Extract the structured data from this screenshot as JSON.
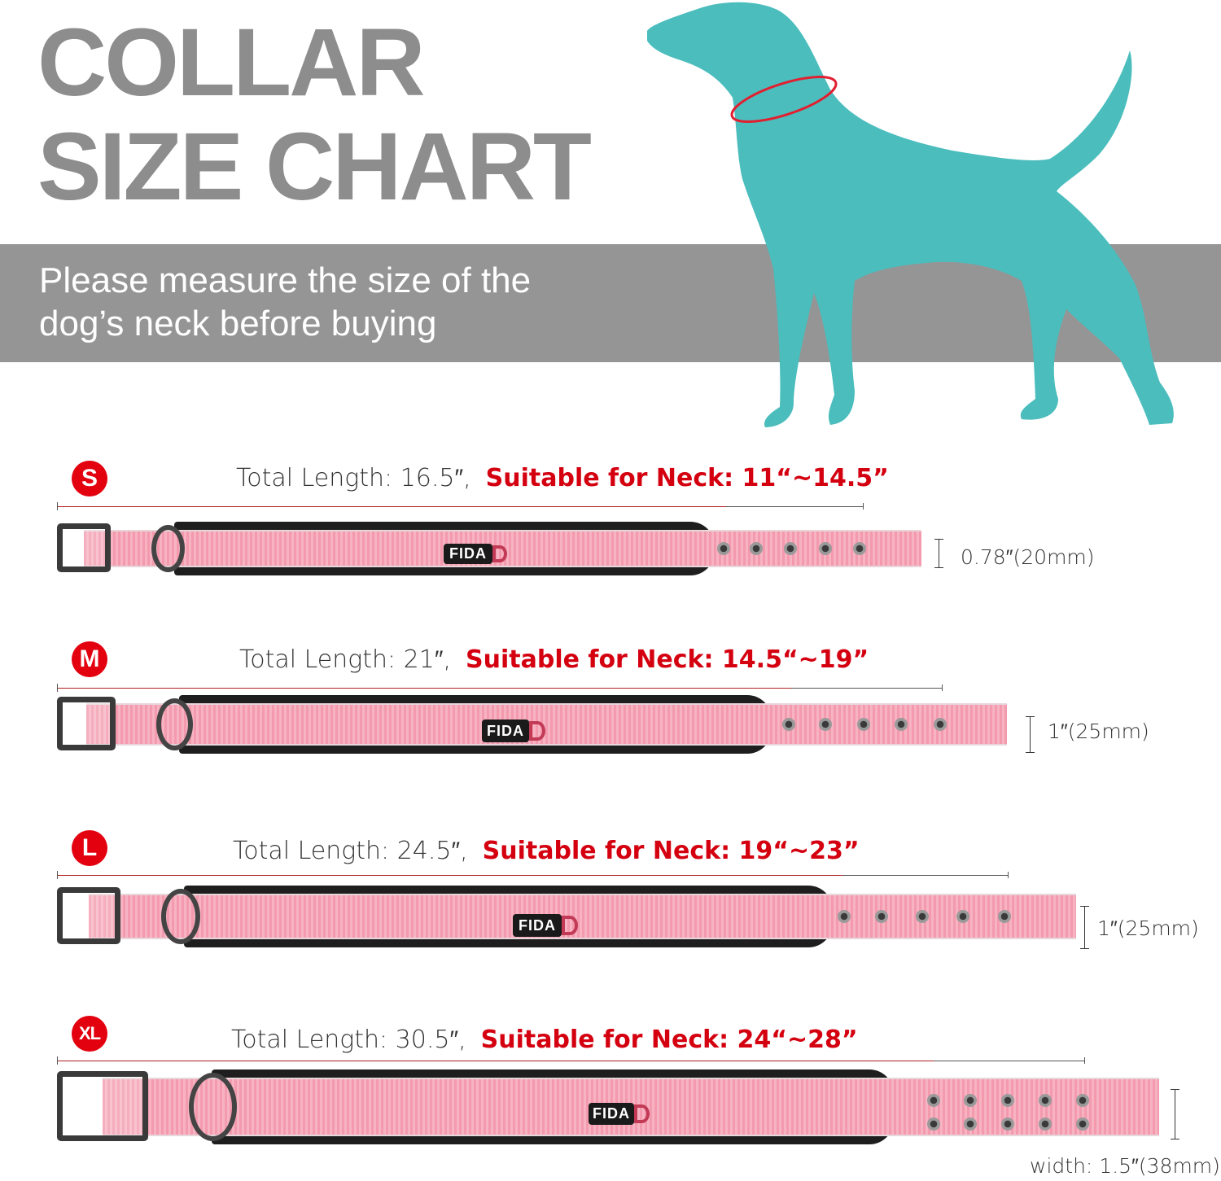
{
  "header": {
    "title_line1": "COLLAR",
    "title_line2": "SIZE CHART",
    "instruction_line1": "Please measure the size of the",
    "instruction_line2": "dog’s neck before buying"
  },
  "colors": {
    "title_gray": "#8d8d8d",
    "band_gray": "#959595",
    "dog_teal": "#4bbdbd",
    "accent_red": "#e3000f",
    "collar_pink": "#f39aae"
  },
  "brand_tag": "FIDA",
  "sizes": [
    {
      "badge": "S",
      "total_length": "Total Length: 16.5″,",
      "neck": "Suitable for Neck: 11“~14.5”",
      "width": "0.78″(20mm)",
      "holes": 5
    },
    {
      "badge": "M",
      "total_length": "Total Length: 21″,",
      "neck": "Suitable for Neck: 14.5“~19”",
      "width": "1″(25mm)",
      "holes": 5
    },
    {
      "badge": "L",
      "total_length": "Total Length: 24.5″,",
      "neck": "Suitable for Neck: 19“~23”",
      "width": "1″(25mm)",
      "holes": 5
    },
    {
      "badge": "XL",
      "total_length": "Total Length: 30.5″,",
      "neck": "Suitable for Neck: 24“~28”",
      "width": "width: 1.5″(38mm)",
      "holes": 10
    }
  ]
}
